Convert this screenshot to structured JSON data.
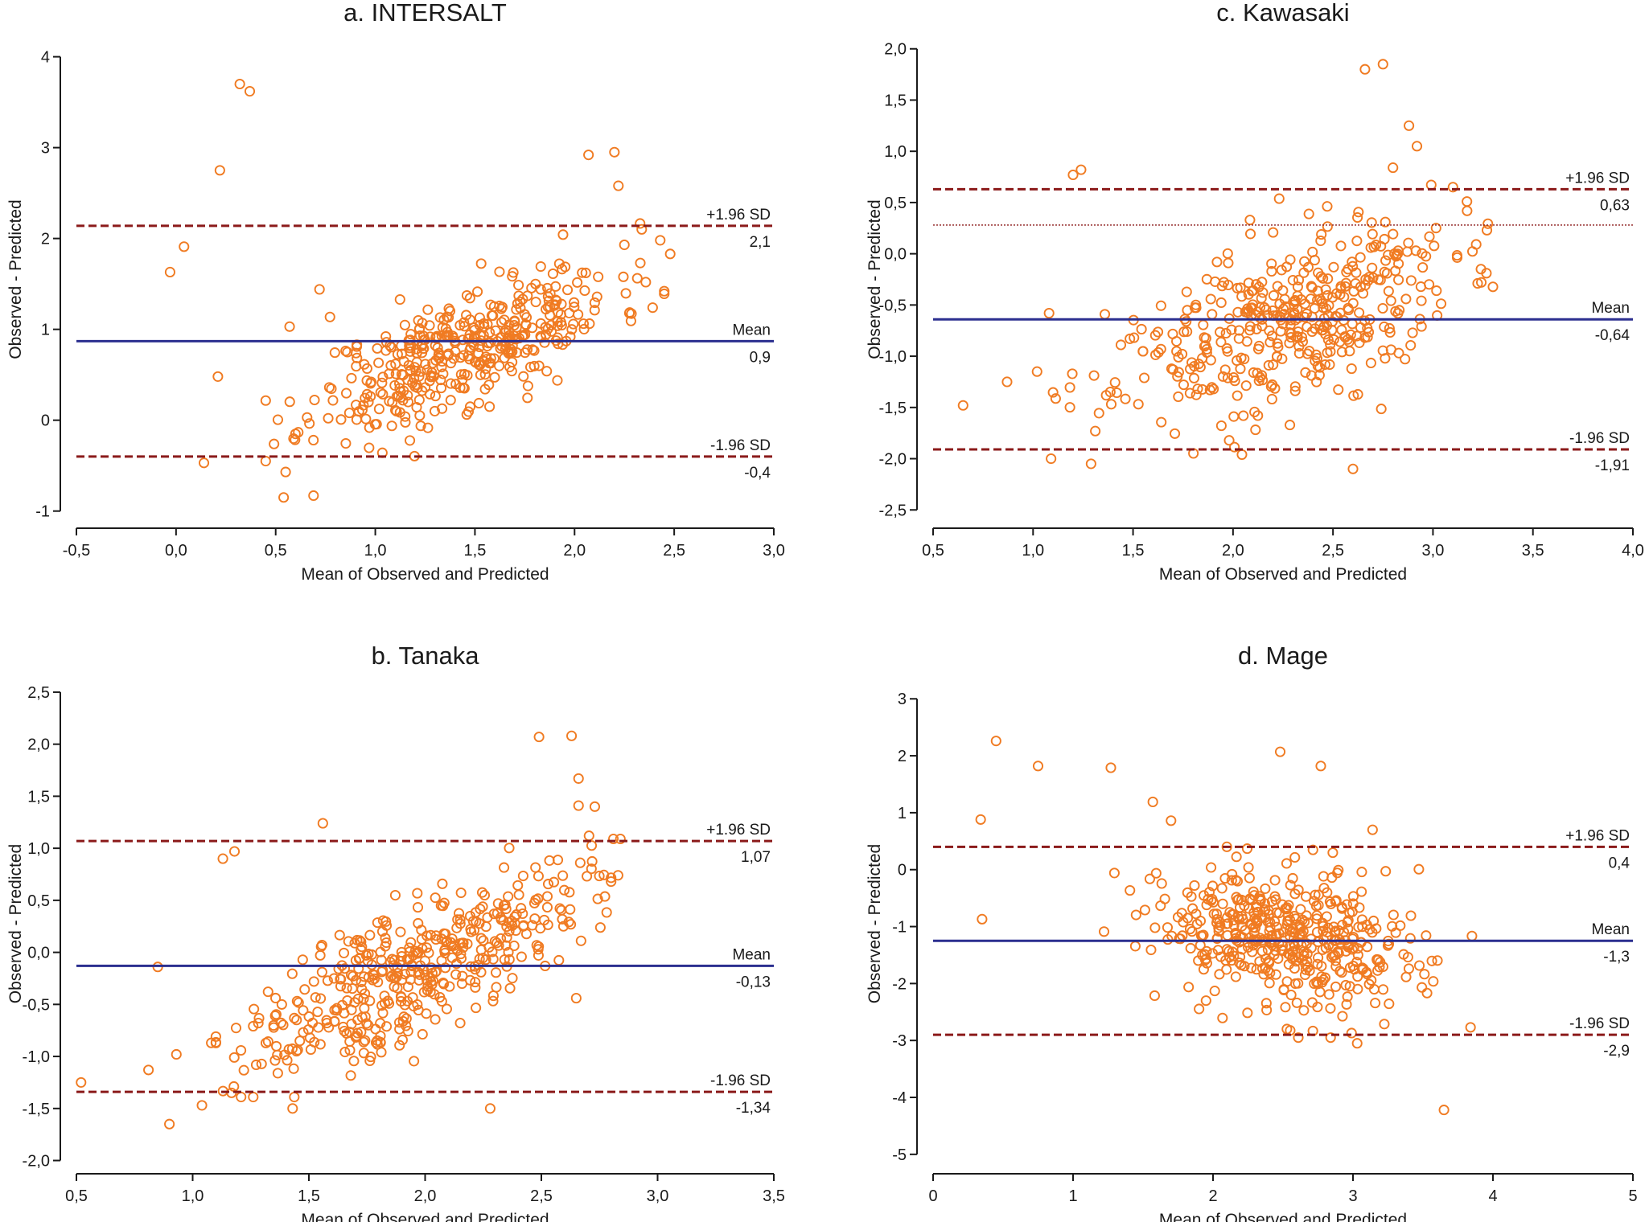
{
  "chart_data": [
    {
      "type": "scatter",
      "title": "a. INTERSALT",
      "xlabel": "Mean of Observed and Predicted",
      "ylabel": "Observed - Predicted",
      "xlim": [
        -0.5,
        3.0
      ],
      "ylim": [
        -1.1,
        4.2
      ],
      "xticks": [
        "-0,5",
        "0,0",
        "0,5",
        "1,0",
        "1,5",
        "2,0",
        "2,5",
        "3,0"
      ],
      "yticks": [
        "-1",
        "0",
        "1",
        "2",
        "3",
        "4"
      ],
      "upper_loa": {
        "value": 2.14,
        "label": "+1.96 SD",
        "value_label": "2,1"
      },
      "mean_line": {
        "value": 0.87,
        "label": "Mean",
        "value_label": "0,9"
      },
      "lower_loa": {
        "value": -0.4,
        "label": "-1.96 SD",
        "value_label": "-0,4"
      },
      "point_cloud": {
        "count": 420,
        "x_center": 1.45,
        "x_spread": 0.38,
        "slope": 0.85,
        "intercept": -0.45,
        "noise": 0.32,
        "x_min": 0.45,
        "x_max": 2.45,
        "seed": 11
      },
      "outliers": [
        [
          0.32,
          3.7
        ],
        [
          0.37,
          3.62
        ],
        [
          0.22,
          2.75
        ],
        [
          -0.03,
          1.63
        ],
        [
          0.04,
          1.91
        ],
        [
          0.21,
          0.48
        ],
        [
          0.14,
          -0.47
        ],
        [
          0.55,
          -0.57
        ],
        [
          0.54,
          -0.85
        ],
        [
          0.69,
          -0.83
        ],
        [
          2.2,
          2.95
        ],
        [
          2.07,
          2.92
        ],
        [
          2.22,
          2.58
        ],
        [
          2.43,
          1.98
        ],
        [
          2.48,
          1.83
        ],
        [
          2.45,
          1.42
        ],
        [
          2.25,
          1.93
        ],
        [
          2.33,
          1.73
        ],
        [
          0.57,
          1.03
        ],
        [
          0.72,
          1.44
        ]
      ]
    },
    {
      "type": "scatter",
      "title": "c. Kawasaki",
      "xlabel": "Mean of Observed and Predicted",
      "ylabel": "Observed - Predicted",
      "xlim": [
        0.5,
        4.0
      ],
      "ylim": [
        -2.6,
        2.1
      ],
      "xticks": [
        "0,5",
        "1,0",
        "1,5",
        "2,0",
        "2,5",
        "3,0",
        "3,5",
        "4,0"
      ],
      "yticks": [
        "-2,5",
        "-2,0",
        "-1,5",
        "-1,0",
        "-0,5",
        "0,0",
        "0,5",
        "1,0",
        "1,5",
        "2,0"
      ],
      "upper_loa": {
        "value": 0.63,
        "label": "+1.96 SD",
        "value_label": "0,63"
      },
      "mean_line": {
        "value": -0.64,
        "label": "Mean",
        "value_label": "-0,64"
      },
      "lower_loa": {
        "value": -1.91,
        "label": "-1.96 SD",
        "value_label": "-1,91"
      },
      "reference_line": {
        "value": 0.28
      },
      "point_cloud": {
        "count": 420,
        "x_center": 2.25,
        "x_spread": 0.42,
        "slope": 0.55,
        "intercept": -1.92,
        "noise": 0.4,
        "x_min": 1.1,
        "x_max": 3.3,
        "seed": 23
      },
      "outliers": [
        [
          0.65,
          -1.48
        ],
        [
          0.87,
          -1.25
        ],
        [
          1.02,
          -1.15
        ],
        [
          1.08,
          -0.58
        ],
        [
          1.2,
          0.77
        ],
        [
          1.24,
          0.82
        ],
        [
          2.66,
          1.8
        ],
        [
          2.75,
          1.85
        ],
        [
          2.88,
          1.25
        ],
        [
          2.92,
          1.05
        ],
        [
          3.1,
          0.65
        ],
        [
          3.17,
          0.51
        ],
        [
          3.27,
          0.23
        ],
        [
          3.24,
          -0.15
        ],
        [
          2.6,
          -2.1
        ],
        [
          1.29,
          -2.05
        ],
        [
          1.09,
          -2.0
        ],
        [
          2.8,
          0.84
        ]
      ]
    },
    {
      "type": "scatter",
      "title": "b. Tanaka",
      "xlabel": "Mean of Observed and Predicted",
      "ylabel": "Observed - Predicted",
      "xlim": [
        0.5,
        3.5
      ],
      "ylim": [
        -2.05,
        2.6
      ],
      "xticks": [
        "0,5",
        "1,0",
        "1,5",
        "2,0",
        "2,5",
        "3,0",
        "3,5"
      ],
      "yticks": [
        "-2,0",
        "-1,5",
        "-1,0",
        "-0,5",
        "0,0",
        "0,5",
        "1,0",
        "1,5",
        "2,0",
        "2,5"
      ],
      "upper_loa": {
        "value": 1.07,
        "label": "+1.96 SD",
        "value_label": "1,07"
      },
      "mean_line": {
        "value": -0.13,
        "label": "Mean",
        "value_label": "-0,13"
      },
      "lower_loa": {
        "value": -1.34,
        "label": "-1.96 SD",
        "value_label": "-1,34"
      },
      "point_cloud": {
        "count": 440,
        "x_center": 1.95,
        "x_spread": 0.36,
        "slope": 1.0,
        "intercept": -2.1,
        "noise": 0.32,
        "x_min": 1.1,
        "x_max": 2.8,
        "seed": 37
      },
      "outliers": [
        [
          0.52,
          -1.25
        ],
        [
          0.81,
          -1.13
        ],
        [
          0.85,
          -0.14
        ],
        [
          0.9,
          -1.65
        ],
        [
          0.93,
          -0.98
        ],
        [
          1.04,
          -1.47
        ],
        [
          1.08,
          -0.87
        ],
        [
          1.13,
          0.9
        ],
        [
          1.18,
          0.97
        ],
        [
          1.43,
          -1.5
        ],
        [
          1.56,
          1.24
        ],
        [
          2.28,
          -1.5
        ],
        [
          2.49,
          2.07
        ],
        [
          2.63,
          2.08
        ],
        [
          2.66,
          1.67
        ],
        [
          2.66,
          1.41
        ],
        [
          2.73,
          1.4
        ],
        [
          2.81,
          1.09
        ],
        [
          2.84,
          1.09
        ],
        [
          2.83,
          0.74
        ],
        [
          2.8,
          0.68
        ],
        [
          2.65,
          -0.44
        ]
      ]
    },
    {
      "type": "scatter",
      "title": "d. Mage",
      "xlabel": "Mean of Observed and Predicted",
      "ylabel": "Observed - Predicted",
      "xlim": [
        0,
        5
      ],
      "ylim": [
        -5.2,
        3.3
      ],
      "xticks": [
        "0",
        "1",
        "2",
        "3",
        "4",
        "5"
      ],
      "yticks": [
        "-5",
        "-4",
        "-3",
        "-2",
        "-1",
        "0",
        "1",
        "2",
        "3"
      ],
      "upper_loa": {
        "value": 0.4,
        "label": "+1.96 SD",
        "value_label": "0,4"
      },
      "mean_line": {
        "value": -1.25,
        "label": "Mean",
        "value_label": "-1,3"
      },
      "lower_loa": {
        "value": -2.9,
        "label": "-1.96 SD",
        "value_label": "-2,9"
      },
      "point_cloud": {
        "count": 460,
        "x_center": 2.55,
        "x_spread": 0.5,
        "slope": -0.35,
        "intercept": -0.35,
        "noise": 0.6,
        "x_min": 1.0,
        "x_max": 3.85,
        "seed": 53
      },
      "outliers": [
        [
          0.45,
          2.26
        ],
        [
          0.34,
          0.88
        ],
        [
          0.75,
          1.82
        ],
        [
          1.27,
          1.79
        ],
        [
          1.57,
          1.19
        ],
        [
          1.7,
          0.86
        ],
        [
          2.48,
          2.07
        ],
        [
          2.77,
          1.82
        ],
        [
          0.35,
          -0.87
        ],
        [
          3.14,
          0.7
        ],
        [
          3.65,
          -4.22
        ],
        [
          3.84,
          -2.77
        ],
        [
          3.03,
          -3.05
        ],
        [
          2.99,
          -2.87
        ]
      ]
    }
  ]
}
